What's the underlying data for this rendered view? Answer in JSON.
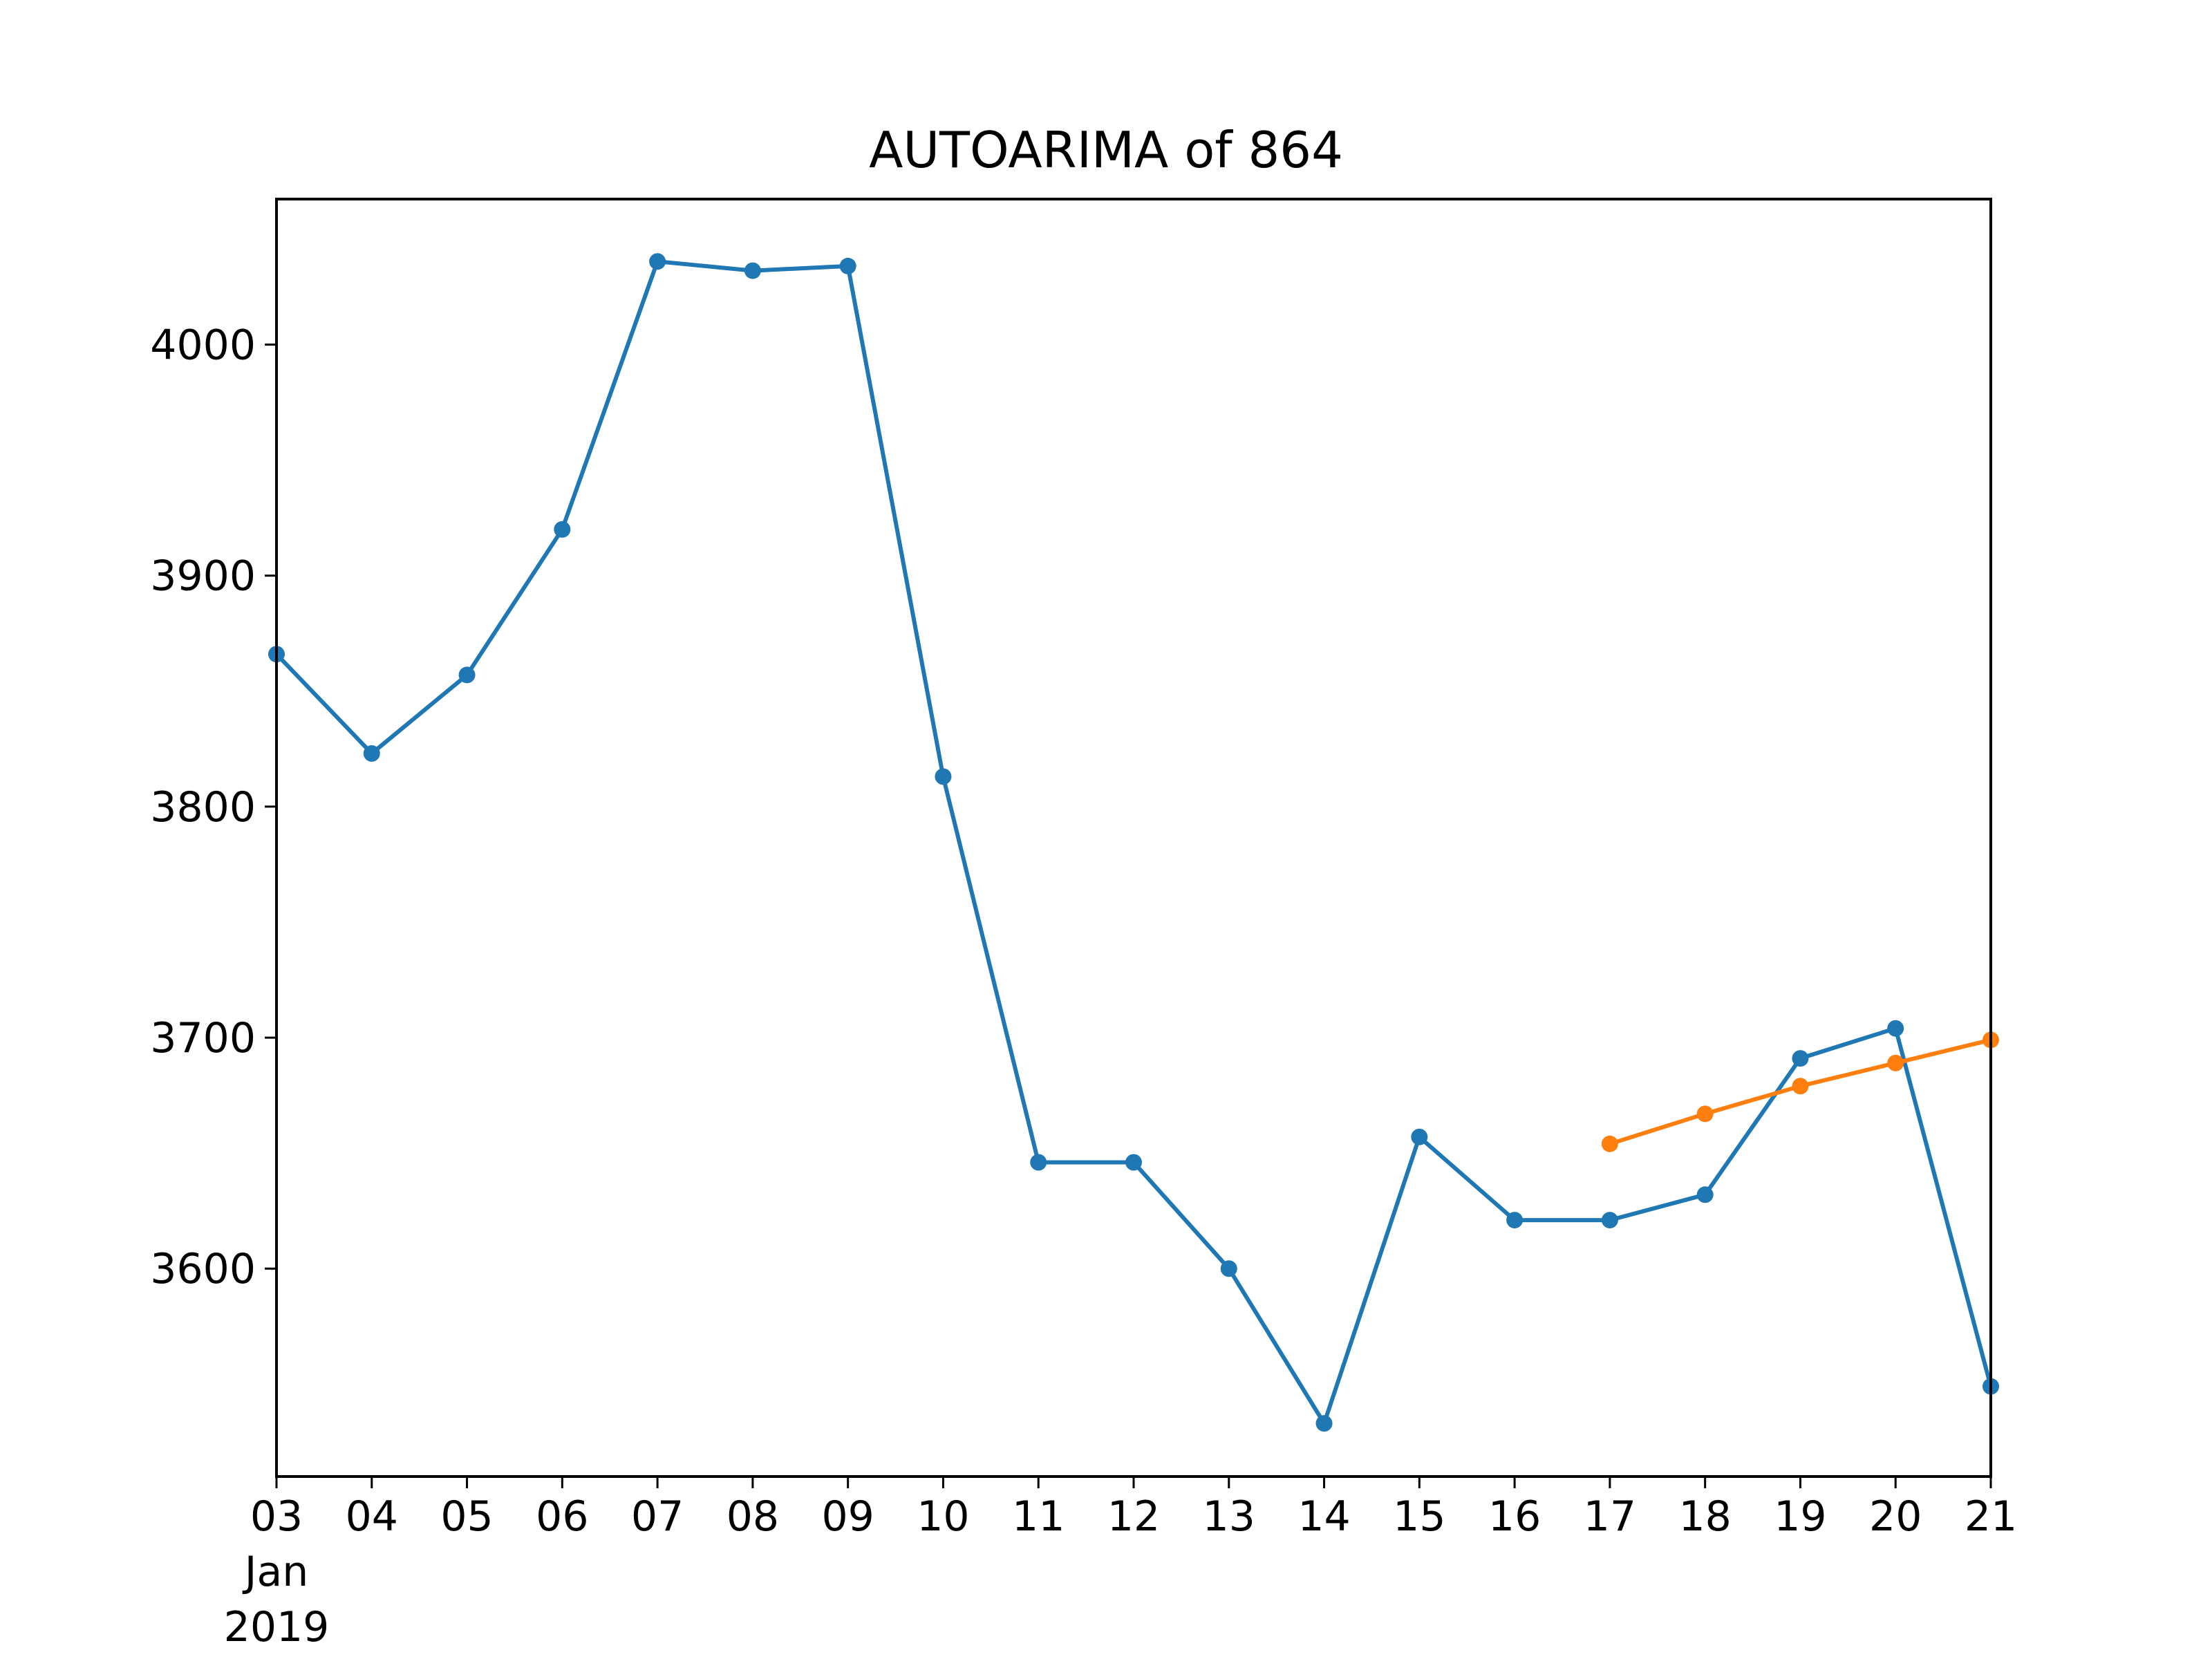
{
  "chart_data": {
    "type": "line",
    "title": "AUTOARIMA of 864",
    "xlabel": "",
    "ylabel": "",
    "x": [
      "2019-01-03",
      "2019-01-04",
      "2019-01-05",
      "2019-01-06",
      "2019-01-07",
      "2019-01-08",
      "2019-01-09",
      "2019-01-10",
      "2019-01-11",
      "2019-01-12",
      "2019-01-13",
      "2019-01-14",
      "2019-01-15",
      "2019-01-16",
      "2019-01-17",
      "2019-01-18",
      "2019-01-19",
      "2019-01-20",
      "2019-01-21"
    ],
    "x_tick_labels": [
      "03",
      "04",
      "05",
      "06",
      "07",
      "08",
      "09",
      "10",
      "11",
      "12",
      "13",
      "14",
      "15",
      "16",
      "17",
      "18",
      "19",
      "20",
      "21"
    ],
    "x_tick_sublabel": {
      "month": "Jan",
      "year": "2019"
    },
    "y_ticks": [
      3600,
      3700,
      3800,
      3900,
      4000
    ],
    "ylim": [
      3510,
      4063
    ],
    "grid": false,
    "series": [
      {
        "color": "#1f77b4",
        "x": [
          "2019-01-03",
          "2019-01-04",
          "2019-01-05",
          "2019-01-06",
          "2019-01-07",
          "2019-01-08",
          "2019-01-09",
          "2019-01-10",
          "2019-01-11",
          "2019-01-12",
          "2019-01-13",
          "2019-01-14",
          "2019-01-15",
          "2019-01-16",
          "2019-01-17",
          "2019-01-18",
          "2019-01-19",
          "2019-01-20",
          "2019-01-21"
        ],
        "values": [
          3866,
          3823,
          3857,
          3920,
          4036,
          4032,
          4034,
          3813,
          3646,
          3646,
          3600,
          3533,
          3657,
          3621,
          3621,
          3632,
          3691,
          3704,
          3549
        ]
      },
      {
        "color": "#ff7f0e",
        "x": [
          "2019-01-17",
          "2019-01-18",
          "2019-01-19",
          "2019-01-20",
          "2019-01-21"
        ],
        "values": [
          3654,
          3667,
          3679,
          3689,
          3699
        ]
      }
    ]
  }
}
